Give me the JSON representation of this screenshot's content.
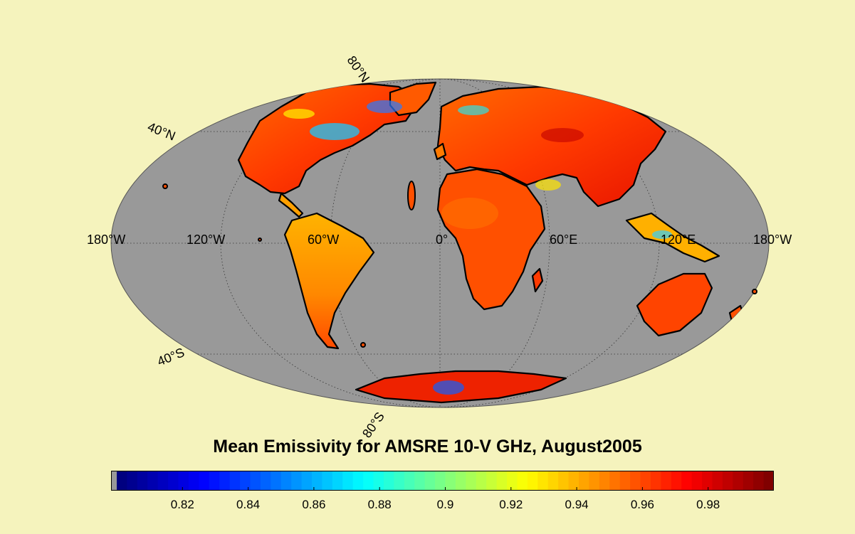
{
  "title": "Mean Emissivity for AMSRE 10-V GHz, August2005",
  "map": {
    "projection": "mollweide",
    "center_longitude": 0,
    "ocean_color": "#999999",
    "graticule_labels": {
      "lon_left": "180°W",
      "lon_120w": "120°W",
      "lon_60w": "60°W",
      "lon_0": "0°",
      "lon_60e": "60°E",
      "lon_120e": "120°E",
      "lon_right": "180°W",
      "lat_80n": "80°N",
      "lat_40n": "40°N",
      "lat_40s": "40°S",
      "lat_80s": "80°S"
    }
  },
  "colorbar": {
    "min": 0.8,
    "max": 1.0,
    "tick_values": [
      0.82,
      0.84,
      0.86,
      0.88,
      0.9,
      0.92,
      0.94,
      0.96,
      0.98
    ],
    "tick_labels": [
      "0.82",
      "0.84",
      "0.86",
      "0.88",
      "0.9",
      "0.92",
      "0.94",
      "0.96",
      "0.98"
    ],
    "colormap": "jet",
    "nodata_color": "#999999"
  },
  "colors": {
    "background": "#f5f3bd",
    "ocean": "#999999",
    "coast": "#000000"
  }
}
